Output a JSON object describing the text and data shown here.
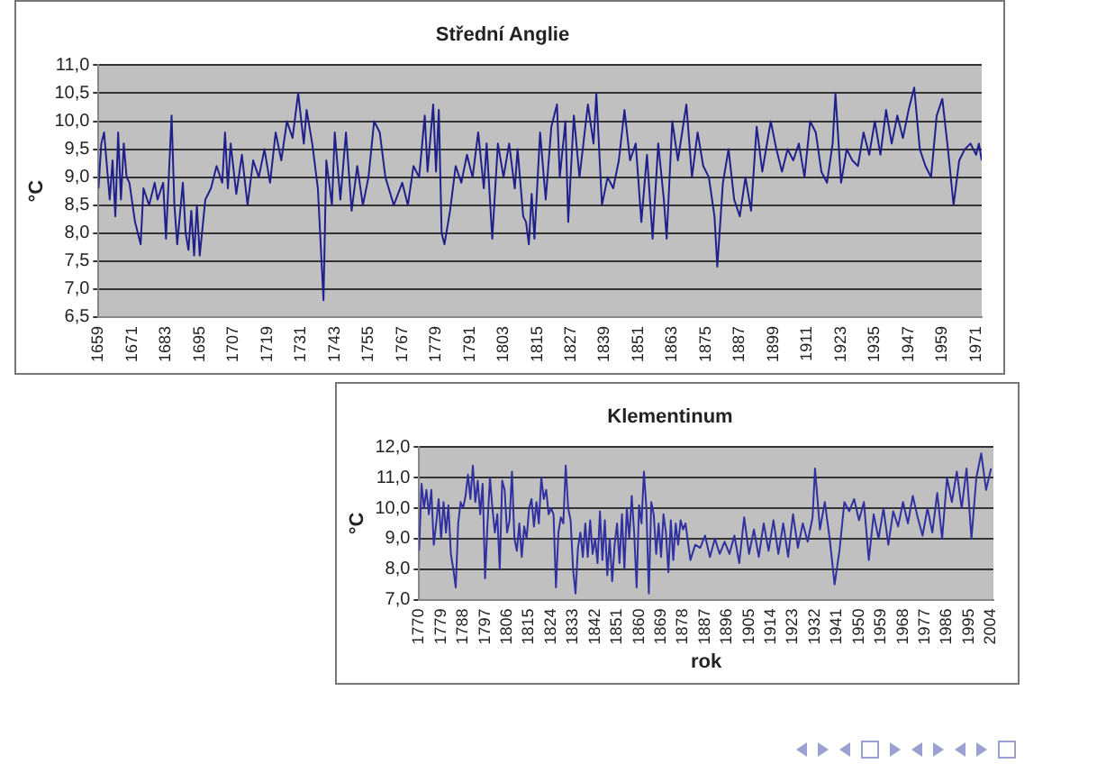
{
  "chart_data": [
    {
      "type": "line",
      "title": "Střední Anglie",
      "ylabel": "°C",
      "grid": "y",
      "marker": "none",
      "legend": false,
      "xlim": [
        1659,
        1973
      ],
      "xticks": [
        1659,
        1671,
        1683,
        1695,
        1707,
        1719,
        1731,
        1743,
        1755,
        1767,
        1779,
        1791,
        1803,
        1815,
        1827,
        1839,
        1851,
        1863,
        1875,
        1887,
        1899,
        1911,
        1923,
        1935,
        1947,
        1959,
        1971
      ],
      "ylim": [
        6.5,
        11.0
      ],
      "yticks": [
        {
          "value": 6.5,
          "label": "6,5"
        },
        {
          "value": 7,
          "label": "7,0"
        },
        {
          "value": 7.5,
          "label": "7,5"
        },
        {
          "value": 8,
          "label": "8,0"
        },
        {
          "value": 8.5,
          "label": "8,5"
        },
        {
          "value": 9,
          "label": "9,0"
        },
        {
          "value": 9.5,
          "label": "9,5"
        },
        {
          "value": 10,
          "label": "10,0"
        },
        {
          "value": 10.5,
          "label": "10,5"
        },
        {
          "value": 11,
          "label": "11,0"
        }
      ],
      "series": [
        {
          "color": "#20208c",
          "x": [
            1659,
            1660,
            1661,
            1662,
            1663,
            1664,
            1665,
            1666,
            1667,
            1668,
            1669,
            1670,
            1672,
            1674,
            1675,
            1677,
            1679,
            1680,
            1682,
            1683,
            1685,
            1686,
            1687,
            1689,
            1690,
            1691,
            1692,
            1693,
            1694,
            1695,
            1697,
            1699,
            1701,
            1703,
            1704,
            1705,
            1706,
            1708,
            1710,
            1712,
            1714,
            1716,
            1718,
            1720,
            1722,
            1724,
            1726,
            1728,
            1730,
            1732,
            1733,
            1735,
            1737,
            1739,
            1740,
            1742,
            1743,
            1745,
            1747,
            1749,
            1751,
            1753,
            1755,
            1757,
            1759,
            1761,
            1764,
            1767,
            1769,
            1771,
            1773,
            1775,
            1776,
            1778,
            1779,
            1780,
            1781,
            1782,
            1784,
            1786,
            1788,
            1790,
            1792,
            1794,
            1796,
            1797,
            1799,
            1801,
            1803,
            1805,
            1807,
            1808,
            1810,
            1811,
            1812,
            1813,
            1814,
            1816,
            1818,
            1820,
            1822,
            1823,
            1825,
            1826,
            1828,
            1830,
            1833,
            1835,
            1836,
            1838,
            1840,
            1842,
            1844,
            1846,
            1848,
            1850,
            1852,
            1854,
            1856,
            1858,
            1860,
            1861,
            1863,
            1865,
            1868,
            1870,
            1872,
            1874,
            1876,
            1878,
            1879,
            1881,
            1883,
            1885,
            1887,
            1889,
            1891,
            1893,
            1895,
            1898,
            1900,
            1902,
            1904,
            1906,
            1908,
            1910,
            1912,
            1914,
            1916,
            1918,
            1920,
            1921,
            1923,
            1925,
            1927,
            1929,
            1931,
            1933,
            1935,
            1937,
            1939,
            1941,
            1943,
            1945,
            1947,
            1949,
            1951,
            1953,
            1955,
            1957,
            1959,
            1961,
            1963,
            1965,
            1967,
            1969,
            1971,
            1972,
            1973
          ],
          "values": [
            8.8,
            9.6,
            9.8,
            9.2,
            8.6,
            9.3,
            8.3,
            9.8,
            8.6,
            9.6,
            9.0,
            8.9,
            8.2,
            7.8,
            8.8,
            8.5,
            8.9,
            8.6,
            8.9,
            7.9,
            10.1,
            8.5,
            7.8,
            8.9,
            8.0,
            7.7,
            8.4,
            7.6,
            8.5,
            7.6,
            8.6,
            8.8,
            9.2,
            8.9,
            9.8,
            8.8,
            9.6,
            8.7,
            9.4,
            8.5,
            9.3,
            9.0,
            9.5,
            8.9,
            9.8,
            9.3,
            10.0,
            9.7,
            10.5,
            9.6,
            10.2,
            9.6,
            8.8,
            6.8,
            9.3,
            8.5,
            9.8,
            8.6,
            9.8,
            8.4,
            9.2,
            8.5,
            9.0,
            10.0,
            9.8,
            9.0,
            8.5,
            8.9,
            8.5,
            9.2,
            9.0,
            10.1,
            9.1,
            10.3,
            9.1,
            10.2,
            8.0,
            7.8,
            8.4,
            9.2,
            8.9,
            9.4,
            9.0,
            9.8,
            8.8,
            9.6,
            7.9,
            9.6,
            9.0,
            9.6,
            8.8,
            9.5,
            8.3,
            8.2,
            7.8,
            8.7,
            7.9,
            9.8,
            8.6,
            9.9,
            10.3,
            9.0,
            10.0,
            8.2,
            10.1,
            9.0,
            10.3,
            9.6,
            10.5,
            8.5,
            9.0,
            8.8,
            9.3,
            10.2,
            9.3,
            9.6,
            8.2,
            9.4,
            7.9,
            9.6,
            8.6,
            7.9,
            10.0,
            9.3,
            10.3,
            9.0,
            9.8,
            9.2,
            9.0,
            8.3,
            7.4,
            8.9,
            9.5,
            8.6,
            8.3,
            9.0,
            8.4,
            9.9,
            9.1,
            10.0,
            9.5,
            9.1,
            9.5,
            9.3,
            9.6,
            9.0,
            10.0,
            9.8,
            9.1,
            8.9,
            9.6,
            10.5,
            8.9,
            9.5,
            9.3,
            9.2,
            9.8,
            9.4,
            10.0,
            9.4,
            10.2,
            9.6,
            10.1,
            9.7,
            10.2,
            10.6,
            9.5,
            9.2,
            9.0,
            10.1,
            10.4,
            9.5,
            8.5,
            9.3,
            9.5,
            9.6,
            9.4,
            9.6,
            9.3
          ]
        }
      ]
    },
    {
      "type": "line",
      "title": "Klementinum",
      "xlabel": "rok",
      "ylabel": "°C",
      "grid": "y",
      "marker": "none",
      "legend": false,
      "xlim": [
        1770,
        2005
      ],
      "xticks": [
        1770,
        1779,
        1788,
        1797,
        1806,
        1815,
        1824,
        1833,
        1842,
        1851,
        1860,
        1869,
        1878,
        1887,
        1896,
        1905,
        1914,
        1923,
        1932,
        1941,
        1950,
        1959,
        1968,
        1977,
        1986,
        1995,
        2004
      ],
      "ylim": [
        7,
        12
      ],
      "yticks": [
        {
          "value": 7,
          "label": "7,0"
        },
        {
          "value": 8,
          "label": "8,0"
        },
        {
          "value": 9,
          "label": "9,0"
        },
        {
          "value": 10,
          "label": "10,0"
        },
        {
          "value": 11,
          "label": "11,0"
        },
        {
          "value": 12,
          "label": "12,0"
        }
      ],
      "series": [
        {
          "color": "#3030a0",
          "x": [
            1770,
            1771,
            1772,
            1773,
            1774,
            1775,
            1776,
            1777,
            1778,
            1779,
            1780,
            1781,
            1782,
            1783,
            1784,
            1785,
            1786,
            1787,
            1788,
            1789,
            1790,
            1791,
            1792,
            1793,
            1794,
            1795,
            1796,
            1797,
            1798,
            1799,
            1800,
            1801,
            1802,
            1803,
            1804,
            1805,
            1806,
            1807,
            1808,
            1809,
            1810,
            1811,
            1812,
            1813,
            1814,
            1815,
            1816,
            1817,
            1818,
            1819,
            1820,
            1821,
            1822,
            1823,
            1824,
            1825,
            1826,
            1827,
            1828,
            1829,
            1830,
            1831,
            1832,
            1833,
            1834,
            1835,
            1836,
            1837,
            1838,
            1839,
            1840,
            1841,
            1842,
            1843,
            1844,
            1845,
            1846,
            1847,
            1848,
            1849,
            1850,
            1851,
            1852,
            1853,
            1854,
            1855,
            1856,
            1857,
            1858,
            1859,
            1860,
            1861,
            1862,
            1863,
            1864,
            1865,
            1866,
            1867,
            1868,
            1869,
            1870,
            1871,
            1872,
            1873,
            1874,
            1875,
            1876,
            1877,
            1878,
            1879,
            1881,
            1883,
            1885,
            1887,
            1889,
            1891,
            1893,
            1895,
            1897,
            1899,
            1901,
            1903,
            1905,
            1907,
            1909,
            1911,
            1913,
            1915,
            1917,
            1919,
            1921,
            1923,
            1925,
            1927,
            1929,
            1931,
            1932,
            1934,
            1936,
            1938,
            1940,
            1942,
            1944,
            1946,
            1948,
            1950,
            1952,
            1954,
            1956,
            1958,
            1960,
            1962,
            1964,
            1966,
            1968,
            1970,
            1972,
            1974,
            1976,
            1978,
            1980,
            1982,
            1984,
            1986,
            1988,
            1990,
            1992,
            1994,
            1996,
            1998,
            2000,
            2002,
            2004
          ],
          "values": [
            8.6,
            10.8,
            10.0,
            10.6,
            9.8,
            10.6,
            8.8,
            9.5,
            10.3,
            9.0,
            10.2,
            9.2,
            10.1,
            8.5,
            8.0,
            7.4,
            9.5,
            10.2,
            10.0,
            10.4,
            11.1,
            10.3,
            11.4,
            10.2,
            10.9,
            9.8,
            10.8,
            7.7,
            9.5,
            11.0,
            10.0,
            9.2,
            9.8,
            8.0,
            10.9,
            10.6,
            9.2,
            9.6,
            11.2,
            9.0,
            8.6,
            9.5,
            8.4,
            9.4,
            9.0,
            10.0,
            10.3,
            9.4,
            10.2,
            9.5,
            11.0,
            10.3,
            10.6,
            9.8,
            10.0,
            9.8,
            7.4,
            9.2,
            9.7,
            9.5,
            11.4,
            10.0,
            9.6,
            8.0,
            7.2,
            8.7,
            9.2,
            8.4,
            9.5,
            8.4,
            9.6,
            8.5,
            9.0,
            8.2,
            9.9,
            8.3,
            9.6,
            7.8,
            9.0,
            7.6,
            8.8,
            9.5,
            8.2,
            9.8,
            8.0,
            10.0,
            9.0,
            10.4,
            9.2,
            7.4,
            10.1,
            9.5,
            11.2,
            10.0,
            7.2,
            10.2,
            9.8,
            8.5,
            9.5,
            8.4,
            9.8,
            9.2,
            7.9,
            9.6,
            8.3,
            9.5,
            8.8,
            9.6,
            9.3,
            9.5,
            8.3,
            8.8,
            8.7,
            9.1,
            8.4,
            9.0,
            8.5,
            8.9,
            8.5,
            9.1,
            8.2,
            9.7,
            8.5,
            9.3,
            8.4,
            9.5,
            8.6,
            9.6,
            8.5,
            9.5,
            8.4,
            9.8,
            8.7,
            9.5,
            8.9,
            9.7,
            11.3,
            9.3,
            10.2,
            9.0,
            7.5,
            8.6,
            10.2,
            9.9,
            10.3,
            9.6,
            10.2,
            8.3,
            9.8,
            9.0,
            10.0,
            8.8,
            9.9,
            9.4,
            10.2,
            9.5,
            10.4,
            9.7,
            9.1,
            10.0,
            9.2,
            10.5,
            9.0,
            11.0,
            10.2,
            11.2,
            10.0,
            11.3,
            9.0,
            11.0,
            11.8,
            10.6,
            11.3
          ]
        }
      ]
    }
  ]
}
